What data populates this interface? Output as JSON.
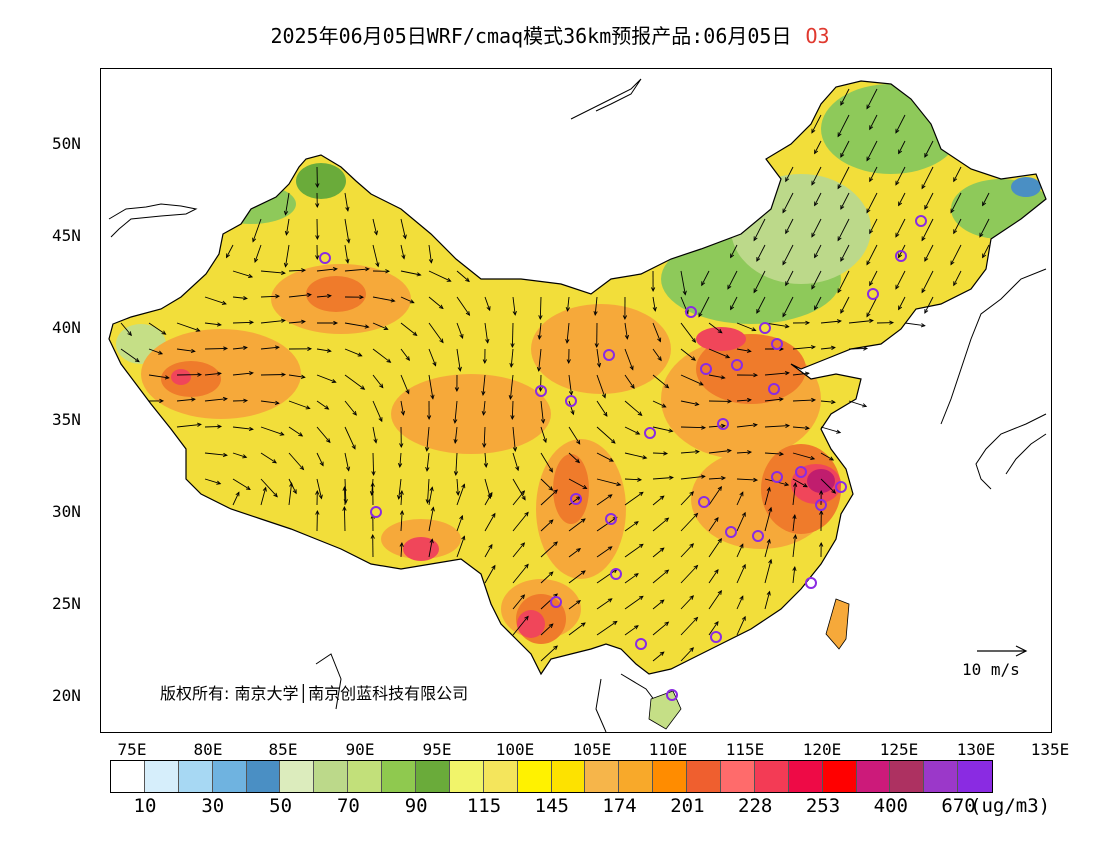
{
  "title": {
    "main": "2025年06月05日WRF/cmaq模式36km预报产品:06月05日",
    "pollutant": "O3",
    "pollutant_color": "#e0392f"
  },
  "axes": {
    "lat_labels": [
      "50N",
      "45N",
      "40N",
      "35N",
      "30N",
      "25N",
      "20N"
    ],
    "lon_labels": [
      "75E",
      "80E",
      "85E",
      "90E",
      "95E",
      "100E",
      "105E",
      "110E",
      "115E",
      "120E",
      "125E",
      "130E",
      "135E"
    ]
  },
  "legend": {
    "colors": [
      "#ffffff",
      "#d6eefb",
      "#a7d8f3",
      "#6fb3e0",
      "#4a8fc4",
      "#dcecbd",
      "#bcd98a",
      "#c2e07a",
      "#8fc94f",
      "#6aab3a",
      "#f1f46a",
      "#f4e55c",
      "#fff200",
      "#fde200",
      "#f6b54a",
      "#f8a92a",
      "#ff8c00",
      "#ef5f2f",
      "#ff6b6b",
      "#f33b55",
      "#ee0a46",
      "#ff0000",
      "#cc1a7a",
      "#ad3161",
      "#9b38c9",
      "#8a2be2"
    ],
    "labels": [
      "10",
      "30",
      "50",
      "70",
      "90",
      "115",
      "145",
      "174",
      "201",
      "228",
      "253",
      "400",
      "670"
    ],
    "unit": "(ug/m3)"
  },
  "copyright": "版权所有: 南京大学│南京创蓝科技有限公司",
  "wind_reference": "10 m/s",
  "map_colors": {
    "base": "#f2de3a",
    "orange": "#f6a93a",
    "deep_orange": "#ef7b2b",
    "red": "#f0465a",
    "magenta": "#c01d6e",
    "green": "#8ec95a",
    "dark_green": "#6aab3a",
    "light_green": "#c5df86",
    "blue": "#4a8fc4",
    "station": "#8a2be2"
  }
}
